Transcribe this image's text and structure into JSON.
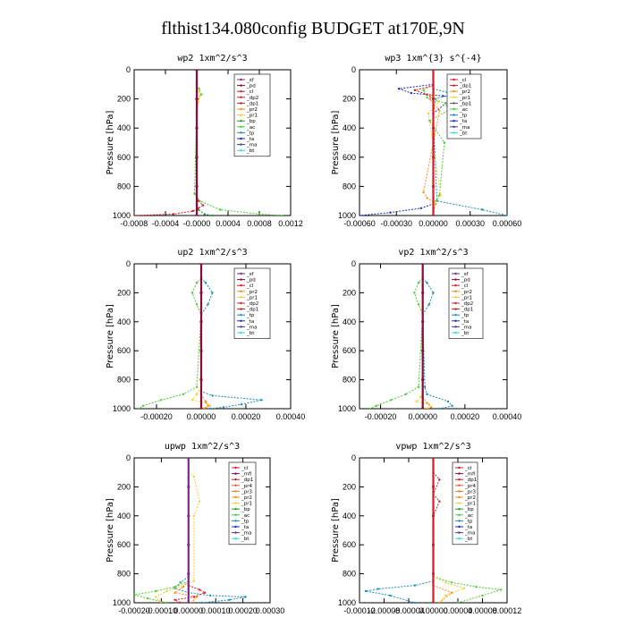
{
  "title": "flthist134.080config  BUDGET at170E,9N",
  "colors": {
    "_sf": "#7b2a8a",
    "_pd": "#8b0a3a",
    "_cl": "#e0162b",
    "_dp2": "#d62020",
    "_pr2": "#ff8c1a",
    "_pr1": "#f2d03a",
    "_bp": "#1a9e2a",
    "_ac": "#4ccd32",
    "_tp": "#1a8fb0",
    "_ta": "#1b2bbf",
    "_ma": "#3d3d9a",
    "_bt": "#30d8e0",
    "_dp1": "#c81e1e",
    "_mf": "#8b0a3a",
    "_pr4": "#e8562a",
    "_pr3": "#f07a18",
    "_mfi": "#8b0a3a",
    "_acc": "#4ccd32"
  },
  "chart_data": [
    {
      "type": "line",
      "title": "wp2   1xm^2/s^3",
      "ylabel": "Pressure  [hPa]",
      "xlim": [
        -0.0008,
        0.0012
      ],
      "ylim": [
        0,
        1000
      ],
      "y_inverted": true,
      "xticks": [
        "-0.0008",
        "-0.0004",
        "-0.0000",
        "0.0004",
        "0.0008",
        "0.0012"
      ],
      "yticks": [
        "0",
        "200",
        "400",
        "600",
        "800",
        "1000"
      ],
      "legend": [
        "_sf",
        "_pd",
        "_cl",
        "_dp2",
        "_dp1",
        "_pr2",
        "_pr1",
        "_bp",
        "_ac",
        "_tp",
        "_ta",
        "_ma",
        "_bt"
      ],
      "series": [
        {
          "name": "_cl",
          "x": [
            0,
            0,
            2e-05,
            8e-05,
            2e-05,
            -5e-05,
            -0.0003,
            -0.0008
          ],
          "y": [
            0,
            850,
            900,
            930,
            950,
            970,
            990,
            1000
          ]
        },
        {
          "name": "_ac",
          "x": [
            0,
            3e-05,
            6e-05,
            2e-05,
            0,
            -3e-05,
            4e-05,
            0.0003,
            0.0008,
            0.0011
          ],
          "y": [
            100,
            130,
            170,
            200,
            300,
            850,
            900,
            960,
            990,
            1000
          ]
        },
        {
          "name": "_pr1",
          "x": [
            0,
            3e-05,
            4e-05,
            2e-05,
            0
          ],
          "y": [
            120,
            150,
            180,
            220,
            300
          ]
        },
        {
          "name": "_bp",
          "x": [
            0,
            2e-05,
            0.0001,
            0.0002
          ],
          "y": [
            900,
            960,
            990,
            1000
          ]
        },
        {
          "name": "_pd",
          "x": [
            0,
            0,
            0,
            0,
            0,
            0
          ],
          "y": [
            0,
            200,
            400,
            600,
            800,
            1000
          ]
        }
      ]
    },
    {
      "type": "line",
      "title": "wp3   1xm^{3} s^{-4}",
      "ylabel": "Pressure  [hPa]",
      "xlim": [
        -0.0006,
        0.0006
      ],
      "ylim": [
        0,
        1000
      ],
      "y_inverted": true,
      "xticks": [
        "-0.00060",
        "-0.00030",
        "0.00000",
        "0.00030",
        "0.00060"
      ],
      "yticks": [
        "0",
        "200",
        "400",
        "600",
        "800",
        "1000"
      ],
      "legend": [
        "_cl",
        "_dp1",
        "_pr2",
        "_pr1",
        "_bp1",
        "_ac",
        "_tp",
        "_ta",
        "_ma",
        "_bt"
      ],
      "series": [
        {
          "name": "_ta",
          "x": [
            0,
            -0.00028,
            -0.00018,
            8e-05,
            0.00025,
            0.0001,
            0,
            0,
            -0.0001,
            -0.00035,
            -0.0006
          ],
          "y": [
            100,
            130,
            160,
            180,
            200,
            230,
            300,
            920,
            950,
            980,
            1000
          ]
        },
        {
          "name": "_tp",
          "x": [
            0,
            0.00016,
            2e-05,
            0,
            3e-05,
            0.0004,
            0.0006
          ],
          "y": [
            130,
            165,
            200,
            300,
            900,
            960,
            1000
          ]
        },
        {
          "name": "_ac",
          "x": [
            0,
            -8e-05,
            -5e-05,
            0.0001,
            0.00012,
            -3e-05,
            9e-05,
            5e-05,
            2e-05,
            0
          ],
          "y": [
            100,
            140,
            190,
            230,
            280,
            350,
            500,
            860,
            900,
            1000
          ]
        },
        {
          "name": "_pr2",
          "x": [
            0,
            -3e-05,
            5e-05,
            0,
            -8e-05,
            -5e-05,
            2e-05
          ],
          "y": [
            150,
            200,
            280,
            500,
            840,
            880,
            920
          ]
        },
        {
          "name": "_pr1",
          "x": [
            0,
            4e-05,
            -4e-05,
            6e-05,
            1e-05
          ],
          "y": [
            150,
            220,
            300,
            860,
            920
          ]
        },
        {
          "name": "_dp1",
          "x": [
            0,
            -0.00015,
            -5e-05,
            0
          ],
          "y": [
            110,
            140,
            170,
            200
          ]
        },
        {
          "name": "_cl",
          "x": [
            0,
            0,
            0,
            0,
            0,
            0
          ],
          "y": [
            0,
            200,
            400,
            600,
            800,
            1000
          ]
        }
      ]
    },
    {
      "type": "line",
      "title": "up2   1xm^2/s^3",
      "ylabel": "Pressure  [hPa]",
      "xlim": [
        -0.0003,
        0.0004
      ],
      "ylim": [
        0,
        1000
      ],
      "y_inverted": true,
      "xticks": [
        "-0.00020",
        "0.00000",
        "0.00020",
        "0.00040"
      ],
      "yticks": [
        "0",
        "200",
        "400",
        "600",
        "800",
        "1000"
      ],
      "legend": [
        "_sf",
        "_pd",
        "_cl",
        "_pr2",
        "_pr1",
        "_dp2",
        "_dp1",
        "_tp",
        "_ta",
        "_ma",
        "_bt"
      ],
      "series": [
        {
          "name": "_tp",
          "x": [
            0,
            2e-05,
            5e-05,
            3e-05,
            0,
            0,
            5e-05,
            0.00027,
            0.00018,
            0.0001,
            4e-05
          ],
          "y": [
            100,
            130,
            200,
            280,
            350,
            880,
            910,
            940,
            970,
            990,
            1000
          ]
        },
        {
          "name": "_ac",
          "x": [
            0,
            -2e-05,
            -4e-05,
            -2e-05,
            0,
            -2e-05,
            -8e-05,
            -0.00018,
            -0.00026,
            -0.00028
          ],
          "y": [
            100,
            130,
            200,
            280,
            350,
            850,
            900,
            940,
            980,
            1000
          ]
        },
        {
          "name": "_pr1",
          "x": [
            0,
            -2e-05,
            -4e-05,
            2e-05,
            4e-05,
            1e-05
          ],
          "y": [
            850,
            900,
            940,
            960,
            980,
            1000
          ]
        },
        {
          "name": "_pr2",
          "x": [
            0,
            2e-05,
            3e-05,
            1e-05
          ],
          "y": [
            900,
            950,
            980,
            1000
          ]
        },
        {
          "name": "_pd",
          "x": [
            0,
            0,
            0,
            0,
            0,
            0
          ],
          "y": [
            0,
            200,
            400,
            600,
            800,
            1000
          ]
        }
      ]
    },
    {
      "type": "line",
      "title": "vp2   1xm^2/s^3",
      "ylabel": "Pressure  [hPa]",
      "xlim": [
        -0.0003,
        0.0004
      ],
      "ylim": [
        0,
        1000
      ],
      "y_inverted": true,
      "xticks": [
        "-0.00020",
        "0.00000",
        "0.00020",
        "0.00040"
      ],
      "yticks": [
        "0",
        "200",
        "400",
        "600",
        "800",
        "1000"
      ],
      "legend": [
        "_sf",
        "_pd",
        "_cl",
        "_pr2",
        "_pr1",
        "_dp2",
        "_dp1",
        "_tp",
        "_ta",
        "_ma",
        "_bt"
      ],
      "series": [
        {
          "name": "_tp",
          "x": [
            0,
            2e-05,
            5e-05,
            3e-05,
            0,
            1e-05,
            2e-05,
            0.00012,
            0.00014,
            8e-05
          ],
          "y": [
            100,
            130,
            200,
            280,
            350,
            850,
            900,
            950,
            980,
            1000
          ]
        },
        {
          "name": "_ac",
          "x": [
            0,
            -2e-05,
            -4e-05,
            -2e-05,
            0,
            -2e-05,
            -8e-05,
            -0.00015,
            -0.00022,
            -0.00025
          ],
          "y": [
            100,
            130,
            200,
            280,
            350,
            850,
            900,
            940,
            980,
            1000
          ]
        },
        {
          "name": "_pr1",
          "x": [
            0,
            -1e-05,
            -3e-05,
            3e-05,
            4e-05,
            2e-05
          ],
          "y": [
            880,
            920,
            950,
            970,
            990,
            1000
          ]
        },
        {
          "name": "_pr2",
          "x": [
            0,
            2e-05,
            4e-05,
            1e-05
          ],
          "y": [
            920,
            960,
            990,
            1000
          ]
        },
        {
          "name": "_pd",
          "x": [
            0,
            0,
            0,
            0,
            0,
            0
          ],
          "y": [
            0,
            200,
            400,
            600,
            800,
            1000
          ]
        }
      ]
    },
    {
      "type": "line",
      "title": "upwp   1xm^2/s^3",
      "ylabel": "Pressure  [hPa]",
      "xlim": [
        -0.0002,
        0.0003
      ],
      "ylim": [
        0,
        1000
      ],
      "y_inverted": true,
      "xticks": [
        "-0.00020",
        "-0.00010",
        "0.00000",
        "0.00010",
        "0.00020",
        "0.00030"
      ],
      "yticks": [
        "0",
        "200",
        "400",
        "600",
        "800",
        "1000"
      ],
      "legend": [
        "_cl",
        "_mfi",
        "_dp1",
        "_pr4",
        "_pr3",
        "_pr2",
        "_pr1",
        "_bp",
        "_ac",
        "_tp",
        "_ta",
        "_ma",
        "_bt"
      ],
      "series": [
        {
          "name": "_tp",
          "x": [
            0,
            -3e-05,
            -5e-05,
            0,
            8e-05,
            0.00021,
            0.00015,
            5e-05
          ],
          "y": [
            820,
            860,
            900,
            930,
            950,
            960,
            980,
            1000
          ]
        },
        {
          "name": "_ac",
          "x": [
            0,
            -5e-05,
            -0.00012,
            -0.0002,
            -0.00015,
            -8e-05
          ],
          "y": [
            850,
            890,
            920,
            945,
            970,
            1000
          ]
        },
        {
          "name": "_pr2",
          "x": [
            0,
            -2e-05,
            -5e-05,
            3e-05,
            1e-05
          ],
          "y": [
            850,
            890,
            930,
            960,
            1000
          ]
        },
        {
          "name": "_pr1",
          "x": [
            0,
            2e-05,
            4e-05,
            2e-05,
            2e-05,
            -8e-05,
            -0.00012,
            -0.0001
          ],
          "y": [
            100,
            130,
            300,
            400,
            850,
            920,
            960,
            1000
          ]
        },
        {
          "name": "_cl",
          "x": [
            0,
            4e-05,
            6e-05,
            2e-05,
            -5e-05,
            -3e-05
          ],
          "y": [
            880,
            910,
            930,
            960,
            980,
            1000
          ]
        },
        {
          "name": "_sf",
          "x": [
            0,
            0,
            0,
            0,
            0,
            0
          ],
          "y": [
            0,
            200,
            400,
            600,
            800,
            1000
          ]
        }
      ]
    },
    {
      "type": "line",
      "title": "vpwp   1xm^2/s^3",
      "ylabel": "Pressure  [hPa]",
      "xlim": [
        -0.00012,
        0.00012
      ],
      "ylim": [
        0,
        1000
      ],
      "y_inverted": true,
      "xticks": [
        "-0.00012",
        "-0.00008",
        "-0.00004",
        "0.00000",
        "0.00004",
        "0.00008",
        "0.00012"
      ],
      "yticks": [
        "0",
        "200",
        "400",
        "600",
        "800",
        "1000"
      ],
      "legend": [
        "_cl",
        "_mfi",
        "_dp1",
        "_pr4",
        "_pr3",
        "_pr2",
        "_pr1",
        "_bp",
        "_ac",
        "_tp",
        "_ta",
        "_ma",
        "_bt"
      ],
      "series": [
        {
          "name": "_ac",
          "x": [
            0,
            3e-05,
            7e-05,
            0.00011,
            8e-05,
            4e-05
          ],
          "y": [
            820,
            860,
            890,
            910,
            950,
            1000
          ]
        },
        {
          "name": "_tp",
          "x": [
            0,
            -3e-05,
            -9e-05,
            -0.00011,
            -7e-05,
            -3e-05
          ],
          "y": [
            850,
            880,
            905,
            920,
            950,
            1000
          ]
        },
        {
          "name": "_pr1",
          "x": [
            0,
            2e-05,
            5e-05,
            2e-05,
            1e-05
          ],
          "y": [
            820,
            860,
            900,
            950,
            1000
          ]
        },
        {
          "name": "_pr2",
          "x": [
            0,
            3e-05,
            1e-05
          ],
          "y": [
            880,
            930,
            1000
          ]
        },
        {
          "name": "_dp1",
          "x": [
            0,
            1e-05,
            0,
            1e-05,
            0
          ],
          "y": [
            100,
            150,
            250,
            300,
            400
          ]
        },
        {
          "name": "_cl",
          "x": [
            0,
            0,
            0,
            0,
            0,
            0
          ],
          "y": [
            0,
            200,
            400,
            600,
            800,
            1000
          ]
        }
      ]
    }
  ]
}
